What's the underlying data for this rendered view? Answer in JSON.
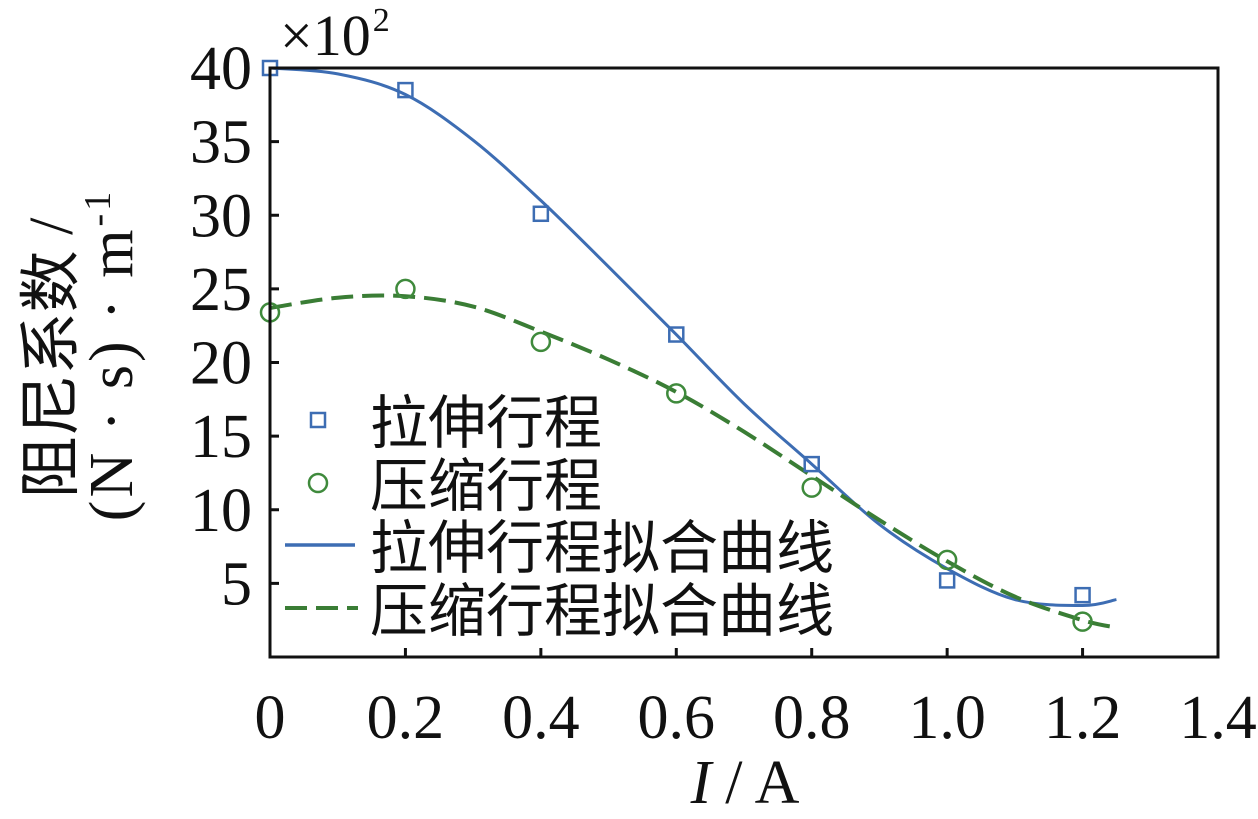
{
  "chart_data": {
    "type": "scatter",
    "y_multiplier": {
      "base": "×10",
      "sup": "2"
    },
    "xlabel": {
      "var": "I",
      "unit": "/ A"
    },
    "ylabel": {
      "line1": "阻尼系数 /",
      "line2": "(N · s) · m",
      "line2_sup": "-1"
    },
    "xlim": [
      0,
      1.4
    ],
    "ylim": [
      0,
      40
    ],
    "x_ticks": [
      "0",
      "0.2",
      "0.4",
      "0.6",
      "0.8",
      "1.0",
      "1.2",
      "1.4"
    ],
    "y_ticks": [
      "5",
      "10",
      "15",
      "20",
      "25",
      "30",
      "35",
      "40"
    ],
    "grid": false,
    "legend": {
      "placement": "lower-left"
    },
    "series": [
      {
        "name": "拉伸行程",
        "kind": "markers",
        "marker": "square",
        "color": "#3d6db3",
        "x": [
          0,
          0.2,
          0.4,
          0.6,
          0.8,
          1.0,
          1.2
        ],
        "y": [
          40.0,
          38.5,
          30.1,
          21.9,
          13.1,
          5.2,
          4.2
        ]
      },
      {
        "name": "压缩行程",
        "kind": "markers",
        "marker": "circle",
        "color": "#3f8a3c",
        "x": [
          0,
          0.2,
          0.4,
          0.6,
          0.8,
          1.0,
          1.2
        ],
        "y": [
          23.4,
          25.0,
          21.4,
          17.9,
          11.5,
          6.6,
          2.4
        ]
      },
      {
        "name": "拉伸行程拟合曲线",
        "kind": "line",
        "line_style": "solid",
        "color": "#3d6db3",
        "x": [
          0,
          0.1,
          0.2,
          0.3,
          0.4,
          0.5,
          0.6,
          0.7,
          0.8,
          0.9,
          1.0,
          1.1,
          1.2,
          1.25
        ],
        "y": [
          40.0,
          39.6,
          38.2,
          35.1,
          31.0,
          26.5,
          21.9,
          17.2,
          13.1,
          9.0,
          6.0,
          3.9,
          3.5,
          3.9
        ]
      },
      {
        "name": "压缩行程拟合曲线",
        "kind": "line",
        "line_style": "dashed",
        "color": "#3a7d35",
        "x": [
          0,
          0.1,
          0.2,
          0.3,
          0.4,
          0.5,
          0.6,
          0.7,
          0.8,
          0.9,
          1.0,
          1.1,
          1.2,
          1.25
        ],
        "y": [
          23.7,
          24.4,
          24.5,
          23.8,
          22.1,
          20.2,
          18.0,
          15.3,
          12.3,
          9.3,
          6.5,
          4.1,
          2.5,
          2.0
        ]
      }
    ]
  }
}
